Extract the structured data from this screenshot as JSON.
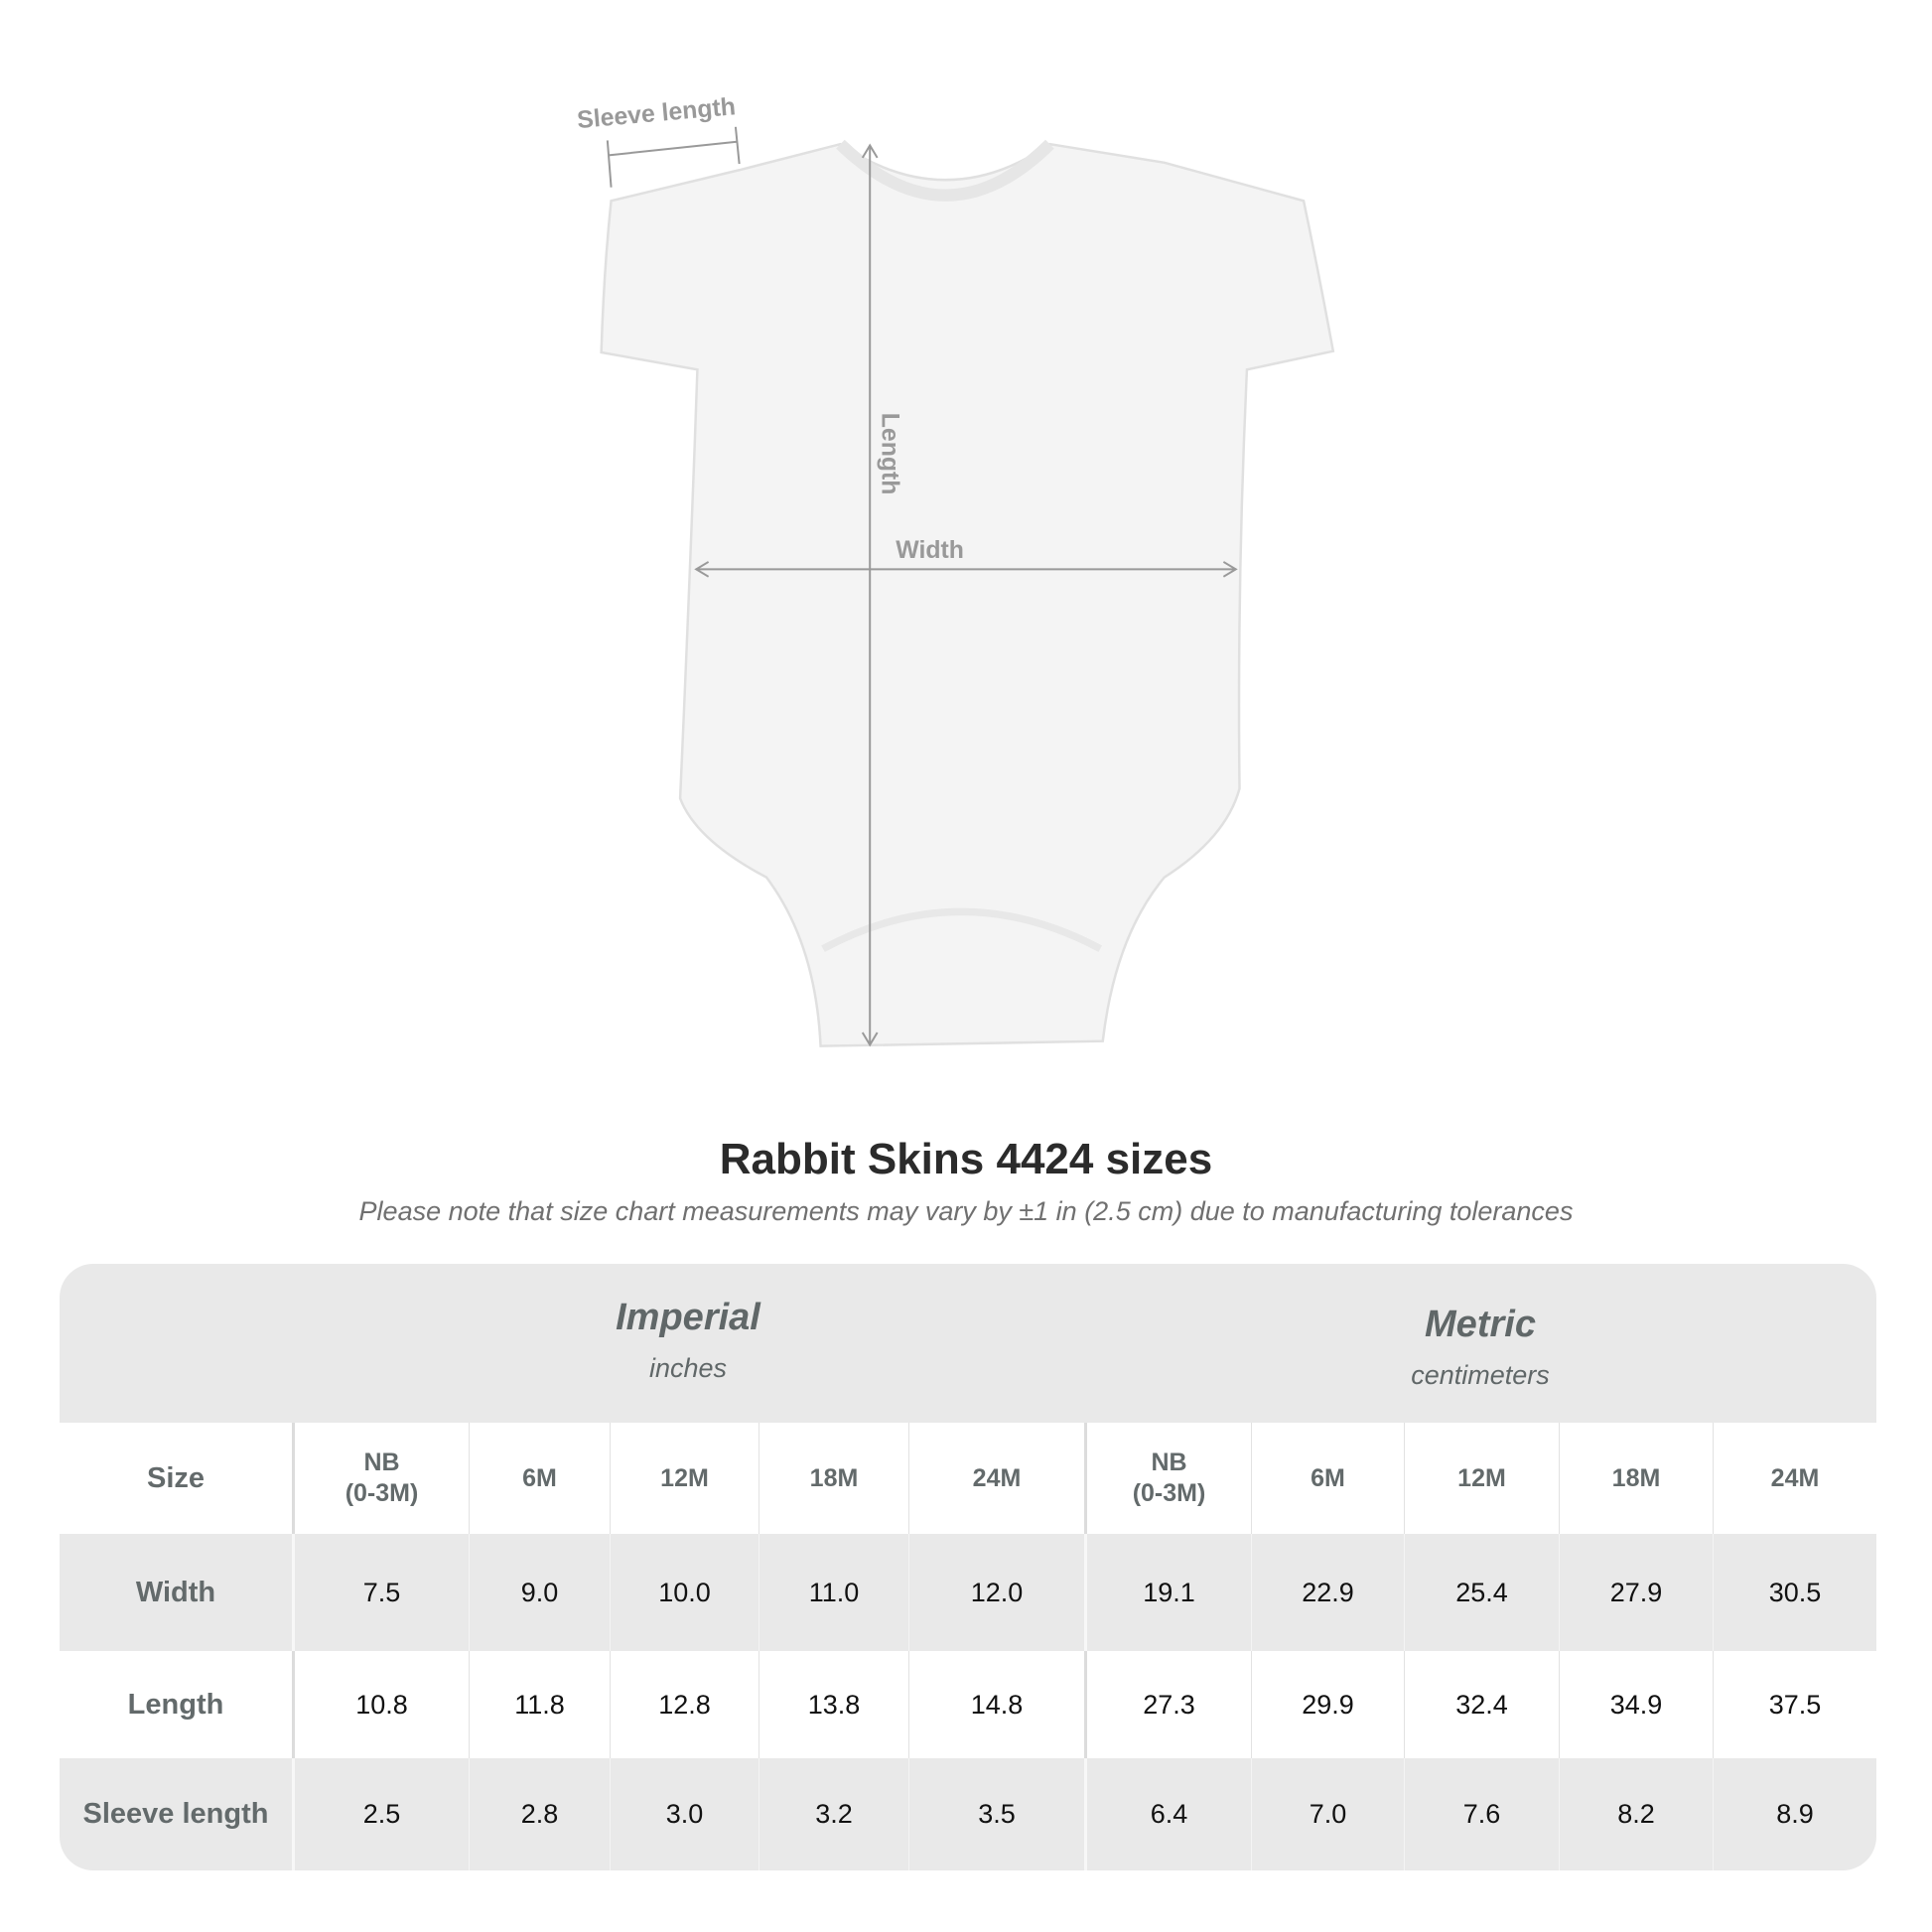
{
  "diagram": {
    "labels": {
      "sleeve": "Sleeve length",
      "length": "Length",
      "width": "Width"
    },
    "garment_color": "#f4f4f4",
    "measure_color": "#999999"
  },
  "title": "Rabbit Skins 4424 sizes",
  "note": "Please note that size chart measurements may vary by ±1 in (2.5 cm) due to manufacturing tolerances",
  "table": {
    "groups": [
      {
        "name": "Imperial",
        "unit": "inches"
      },
      {
        "name": "Metric",
        "unit": "centimeters"
      }
    ],
    "header": [
      "Size",
      "NB\n(0-3M)",
      "6M",
      "12M",
      "18M",
      "24M",
      "NB\n(0-3M)",
      "6M",
      "12M",
      "18M",
      "24M"
    ],
    "rows": [
      {
        "label": "Width",
        "values": [
          "7.5",
          "9.0",
          "10.0",
          "11.0",
          "12.0",
          "19.1",
          "22.9",
          "25.4",
          "27.9",
          "30.5"
        ]
      },
      {
        "label": "Length",
        "values": [
          "10.8",
          "11.8",
          "12.8",
          "13.8",
          "14.8",
          "27.3",
          "29.9",
          "32.4",
          "34.9",
          "37.5"
        ]
      },
      {
        "label": "Sleeve length",
        "values": [
          "2.5",
          "2.8",
          "3.0",
          "3.2",
          "3.5",
          "6.4",
          "7.0",
          "7.6",
          "8.2",
          "8.9"
        ]
      }
    ]
  }
}
